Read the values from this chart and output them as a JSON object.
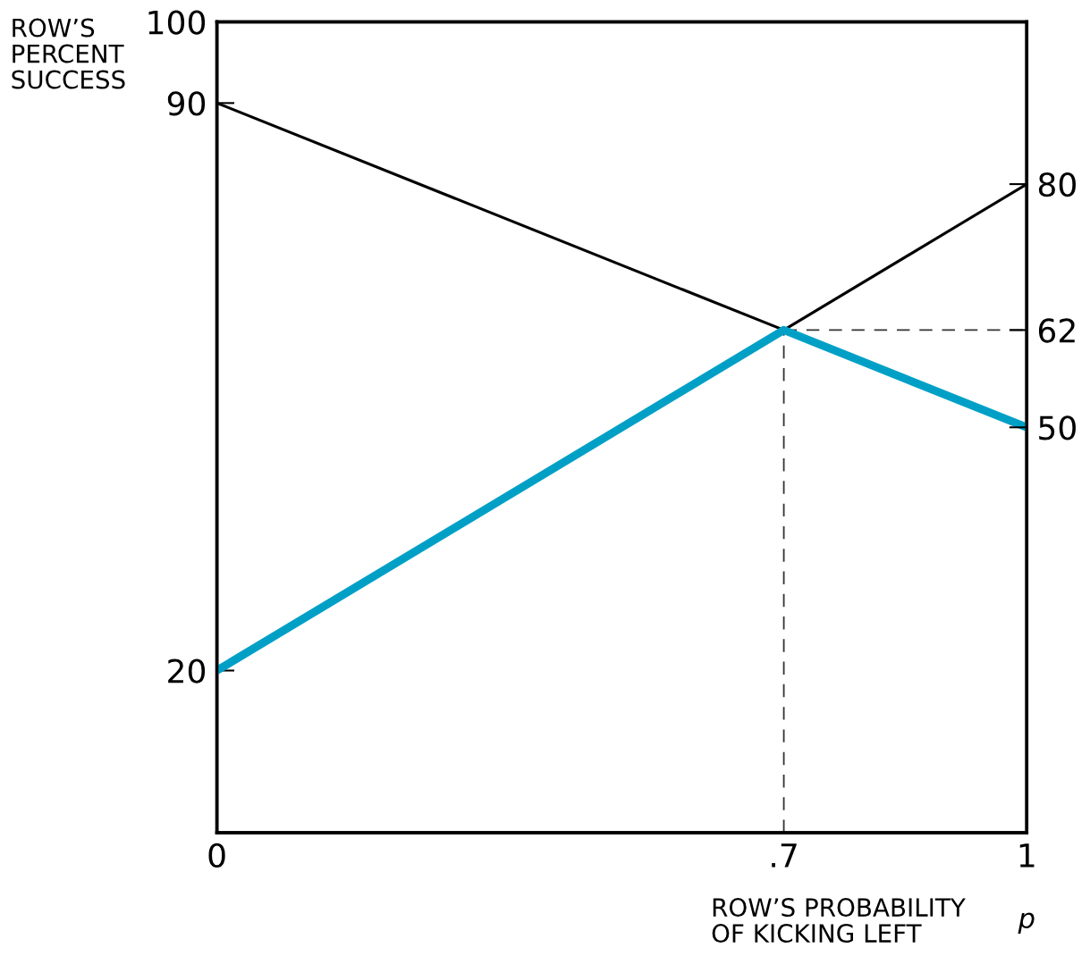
{
  "chart_data": {
    "type": "line",
    "xlabel": "ROW’S PROBABILITY\nOF KICKING LEFT",
    "ylabel": "ROW’S\nPERCENT\nSUCCESS",
    "annotations": [
      "p"
    ],
    "series": [
      {
        "color": "#000000",
        "x": [
          0,
          0.7,
          1
        ],
        "values": [
          90,
          62,
          80
        ]
      },
      {
        "color": "#00a0c6",
        "x": [
          0,
          0.7,
          1
        ],
        "values": [
          20,
          62,
          50
        ]
      }
    ],
    "xlim": [
      0,
      1
    ],
    "xticks": [
      0,
      {
        "value": 0.7,
        "label": ".7"
      },
      1
    ],
    "ylim": [
      0,
      100
    ],
    "yticks": [
      100,
      90,
      20
    ],
    "y2lim": [
      0,
      100
    ],
    "y2ticks": [
      80,
      62,
      50
    ],
    "ref_lines": [
      {
        "axis": "x",
        "value": 0.7,
        "color": "#333333",
        "line_style": "dashed"
      },
      {
        "axis": "y",
        "value": 62,
        "color": "#333333",
        "line_style": "dashed"
      }
    ],
    "grid": false,
    "legend": false,
    "marker": "none",
    "line_style": "solid"
  }
}
